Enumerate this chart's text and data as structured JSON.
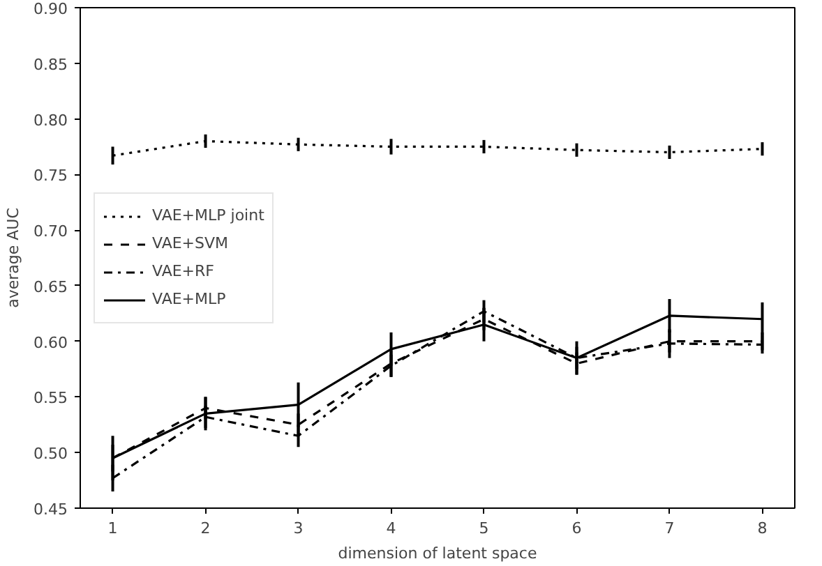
{
  "chart_data": {
    "type": "line",
    "xlabel": "dimension of latent space",
    "ylabel": "average AUC",
    "x": [
      1,
      2,
      3,
      4,
      5,
      6,
      7,
      8
    ],
    "xlim": [
      0.65,
      8.35
    ],
    "xticks": [
      1,
      2,
      3,
      4,
      5,
      6,
      7,
      8
    ],
    "ylim": [
      0.45,
      0.9
    ],
    "yticks": [
      {
        "value": 0.45,
        "label": "0.45"
      },
      {
        "value": 0.5,
        "label": "0.50"
      },
      {
        "value": 0.55,
        "label": "0.55"
      },
      {
        "value": 0.6,
        "label": "0.60"
      },
      {
        "value": 0.65,
        "label": "0.65"
      },
      {
        "value": 0.7,
        "label": "0.70"
      },
      {
        "value": 0.75,
        "label": "0.75"
      },
      {
        "value": 0.8,
        "label": "0.80"
      },
      {
        "value": 0.85,
        "label": "0.85"
      },
      {
        "value": 0.9,
        "label": "0.90"
      }
    ],
    "grid": false,
    "legend": "left",
    "marker": "none",
    "series": [
      {
        "name": "VAE+MLP joint",
        "color": "#000000",
        "line_style": "dotted",
        "values": [
          0.767,
          0.78,
          0.777,
          0.775,
          0.775,
          0.772,
          0.77,
          0.773
        ],
        "errors": [
          0.008,
          0.006,
          0.006,
          0.007,
          0.006,
          0.006,
          0.006,
          0.006
        ]
      },
      {
        "name": "VAE+SVM",
        "color": "#000000",
        "line_style": "dashed",
        "values": [
          0.495,
          0.54,
          0.525,
          0.58,
          0.62,
          0.58,
          0.6,
          0.6
        ],
        "errors": [
          0.012,
          0.01,
          0.01,
          0.012,
          0.01,
          0.01,
          0.01,
          0.008
        ]
      },
      {
        "name": "VAE+RF",
        "color": "#000000",
        "line_style": "dashdot",
        "values": [
          0.477,
          0.532,
          0.515,
          0.578,
          0.627,
          0.585,
          0.598,
          0.597
        ],
        "errors": [
          0.012,
          0.01,
          0.01,
          0.01,
          0.01,
          0.01,
          0.013,
          0.008
        ]
      },
      {
        "name": "VAE+MLP",
        "color": "#000000",
        "line_style": "solid",
        "values": [
          0.495,
          0.535,
          0.543,
          0.593,
          0.615,
          0.585,
          0.623,
          0.62
        ],
        "errors": [
          0.02,
          0.015,
          0.02,
          0.015,
          0.015,
          0.015,
          0.015,
          0.015
        ]
      }
    ]
  }
}
